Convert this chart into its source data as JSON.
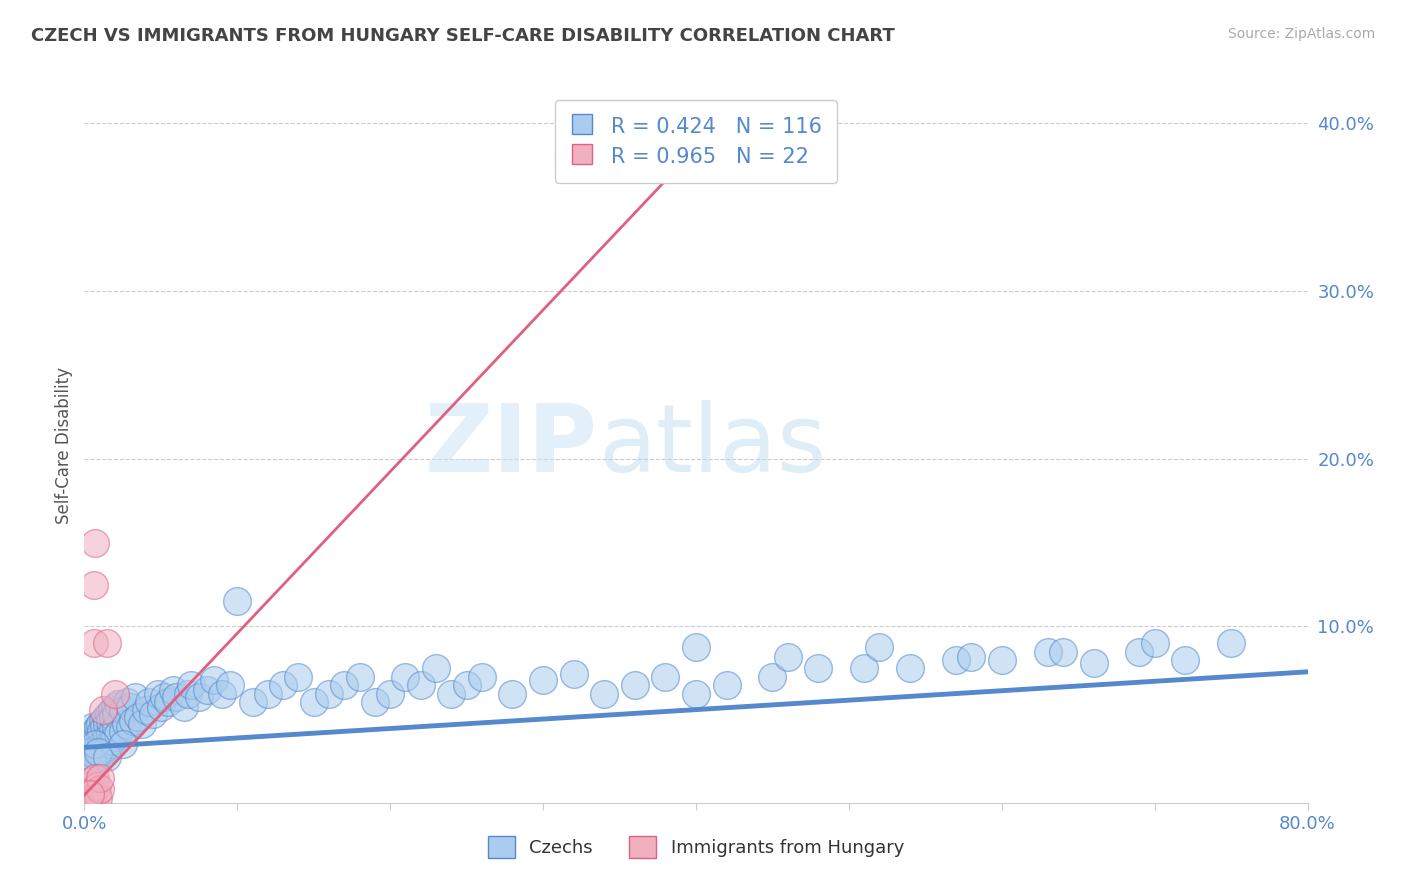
{
  "title": "CZECH VS IMMIGRANTS FROM HUNGARY SELF-CARE DISABILITY CORRELATION CHART",
  "source": "Source: ZipAtlas.com",
  "ylabel": "Self-Care Disability",
  "xlim": [
    0.0,
    0.8
  ],
  "ylim": [
    -0.005,
    0.42
  ],
  "xticks": [
    0.0,
    0.1,
    0.2,
    0.3,
    0.4,
    0.5,
    0.6,
    0.7,
    0.8
  ],
  "xtick_labels": [
    "0.0%",
    "",
    "",
    "",
    "",
    "",
    "",
    "",
    "80.0%"
  ],
  "yticks": [
    0.1,
    0.2,
    0.3,
    0.4
  ],
  "ytick_labels": [
    "10.0%",
    "20.0%",
    "30.0%",
    "40.0%"
  ],
  "blue_R": 0.424,
  "blue_N": 116,
  "pink_R": 0.965,
  "pink_N": 22,
  "blue_color": "#aaccee",
  "blue_edge_color": "#5588cc",
  "pink_color": "#f0b0c0",
  "pink_edge_color": "#e06080",
  "legend_label_blue": "Czechs",
  "legend_label_pink": "Immigrants from Hungary",
  "watermark_zip": "ZIP",
  "watermark_atlas": "atlas",
  "background_color": "#ffffff",
  "grid_color": "#cccccc",
  "title_color": "#444444",
  "axis_label_color": "#5588cc",
  "blue_scatter_x": [
    0.002,
    0.003,
    0.004,
    0.004,
    0.005,
    0.005,
    0.006,
    0.006,
    0.007,
    0.007,
    0.008,
    0.008,
    0.009,
    0.009,
    0.01,
    0.01,
    0.01,
    0.011,
    0.011,
    0.012,
    0.012,
    0.013,
    0.013,
    0.014,
    0.014,
    0.015,
    0.015,
    0.016,
    0.016,
    0.017,
    0.017,
    0.018,
    0.018,
    0.019,
    0.019,
    0.02,
    0.02,
    0.021,
    0.021,
    0.022,
    0.022,
    0.025,
    0.025,
    0.027,
    0.028,
    0.03,
    0.03,
    0.032,
    0.033,
    0.035,
    0.038,
    0.04,
    0.042,
    0.045,
    0.048,
    0.05,
    0.052,
    0.055,
    0.058,
    0.06,
    0.065,
    0.068,
    0.07,
    0.075,
    0.08,
    0.085,
    0.09,
    0.095,
    0.1,
    0.11,
    0.12,
    0.13,
    0.14,
    0.15,
    0.16,
    0.17,
    0.18,
    0.19,
    0.2,
    0.21,
    0.22,
    0.23,
    0.24,
    0.25,
    0.26,
    0.28,
    0.3,
    0.32,
    0.34,
    0.36,
    0.38,
    0.4,
    0.42,
    0.45,
    0.48,
    0.51,
    0.54,
    0.57,
    0.6,
    0.63,
    0.66,
    0.69,
    0.72,
    0.75,
    0.4,
    0.46,
    0.52,
    0.58,
    0.64,
    0.7,
    0.003,
    0.005,
    0.007,
    0.009,
    0.015,
    0.025
  ],
  "blue_scatter_y": [
    0.03,
    0.025,
    0.035,
    0.022,
    0.04,
    0.028,
    0.032,
    0.02,
    0.038,
    0.026,
    0.034,
    0.022,
    0.04,
    0.028,
    0.035,
    0.025,
    0.042,
    0.03,
    0.038,
    0.026,
    0.044,
    0.032,
    0.04,
    0.028,
    0.046,
    0.034,
    0.042,
    0.03,
    0.048,
    0.036,
    0.044,
    0.032,
    0.05,
    0.038,
    0.046,
    0.034,
    0.052,
    0.04,
    0.048,
    0.036,
    0.054,
    0.038,
    0.05,
    0.042,
    0.055,
    0.04,
    0.052,
    0.044,
    0.058,
    0.046,
    0.042,
    0.05,
    0.055,
    0.048,
    0.06,
    0.052,
    0.058,
    0.055,
    0.062,
    0.058,
    0.052,
    0.06,
    0.065,
    0.058,
    0.062,
    0.068,
    0.06,
    0.065,
    0.115,
    0.055,
    0.06,
    0.065,
    0.07,
    0.055,
    0.06,
    0.065,
    0.07,
    0.055,
    0.06,
    0.07,
    0.065,
    0.075,
    0.06,
    0.065,
    0.07,
    0.06,
    0.068,
    0.072,
    0.06,
    0.065,
    0.07,
    0.06,
    0.065,
    0.07,
    0.075,
    0.075,
    0.075,
    0.08,
    0.08,
    0.085,
    0.078,
    0.085,
    0.08,
    0.09,
    0.088,
    0.082,
    0.088,
    0.082,
    0.085,
    0.09,
    0.025,
    0.02,
    0.03,
    0.025,
    0.022,
    0.03
  ],
  "pink_scatter_x": [
    0.001,
    0.002,
    0.003,
    0.003,
    0.004,
    0.004,
    0.005,
    0.005,
    0.006,
    0.006,
    0.007,
    0.007,
    0.008,
    0.008,
    0.009,
    0.01,
    0.01,
    0.012,
    0.015,
    0.02,
    0.38,
    0.004
  ],
  "pink_scatter_y": [
    -0.002,
    0.002,
    -0.001,
    0.005,
    0.0,
    0.008,
    0.002,
    -0.003,
    0.09,
    0.125,
    0.01,
    0.15,
    0.0,
    0.005,
    -0.002,
    0.003,
    0.01,
    0.05,
    0.09,
    0.06,
    0.38,
    0.0
  ],
  "blue_trendline_x": [
    0.0,
    0.8
  ],
  "blue_trendline_y": [
    0.028,
    0.073
  ],
  "pink_trendline_x": [
    -0.01,
    0.395
  ],
  "pink_trendline_y": [
    -0.01,
    0.38
  ]
}
